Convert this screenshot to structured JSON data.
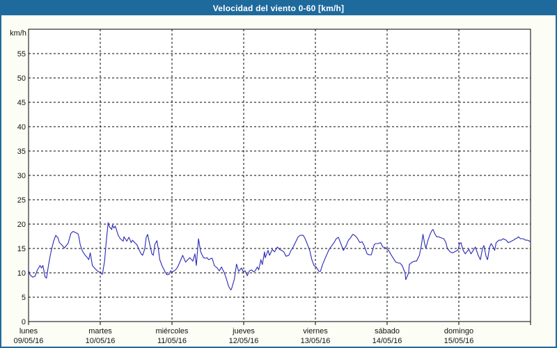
{
  "window": {
    "title": "Velocidad del viento 0-60 [km/h]"
  },
  "colors": {
    "frame_border": "#1e6a9d",
    "titlebar_bg": "#1e6a9d",
    "titlebar_text": "#ffffff",
    "page_bg": "#fcfef6",
    "plot_bg": "#ffffff",
    "axis": "#000000",
    "grid": "#000000",
    "line": "#2828b4",
    "label_text": "#111111"
  },
  "chart_data": {
    "type": "line",
    "title": "Velocidad del viento 0-60 [km/h]",
    "ylabel": "km/h",
    "xlabel": "",
    "ylim": [
      0,
      60
    ],
    "yticks": [
      0,
      5,
      10,
      15,
      20,
      25,
      30,
      35,
      40,
      45,
      50,
      55
    ],
    "grid": "dashed",
    "legend": "none",
    "x_axis": {
      "unit": "days",
      "xlim_days": [
        0,
        7
      ],
      "days": [
        {
          "name": "lunes",
          "date": "09/05/16"
        },
        {
          "name": "martes",
          "date": "10/05/16"
        },
        {
          "name": "miércoles",
          "date": "11/05/16"
        },
        {
          "name": "jueves",
          "date": "12/05/16"
        },
        {
          "name": "viernes",
          "date": "13/05/16"
        },
        {
          "name": "sábado",
          "date": "14/05/16"
        },
        {
          "name": "domingo",
          "date": "15/05/16"
        }
      ]
    },
    "series": [
      {
        "name": "Velocidad del viento",
        "units": "km/h",
        "color": "#2828b4",
        "points": [
          [
            0,
            10.5
          ],
          [
            0.02,
            9.6
          ],
          [
            0.06,
            9.1
          ],
          [
            0.09,
            9.3
          ],
          [
            0.12,
            10.5
          ],
          [
            0.16,
            11.5
          ],
          [
            0.18,
            11
          ],
          [
            0.2,
            11.5
          ],
          [
            0.23,
            9.2
          ],
          [
            0.25,
            8.9
          ],
          [
            0.28,
            11.7
          ],
          [
            0.31,
            14.1
          ],
          [
            0.35,
            16.5
          ],
          [
            0.38,
            17.7
          ],
          [
            0.41,
            17.2
          ],
          [
            0.43,
            16.2
          ],
          [
            0.46,
            15.8
          ],
          [
            0.5,
            15.1
          ],
          [
            0.52,
            15.5
          ],
          [
            0.55,
            16
          ],
          [
            0.59,
            18.1
          ],
          [
            0.62,
            18.5
          ],
          [
            0.65,
            18.3
          ],
          [
            0.69,
            18
          ],
          [
            0.7,
            17.5
          ],
          [
            0.72,
            15.8
          ],
          [
            0.75,
            14.5
          ],
          [
            0.79,
            13.6
          ],
          [
            0.82,
            13.1
          ],
          [
            0.84,
            12.7
          ],
          [
            0.86,
            14.1
          ],
          [
            0.89,
            11.5
          ],
          [
            0.93,
            10.8
          ],
          [
            0.96,
            10.4
          ],
          [
            1,
            10
          ],
          [
            1.03,
            9.7
          ],
          [
            1.06,
            12.4
          ],
          [
            1.08,
            15.8
          ],
          [
            1.11,
            20.3
          ],
          [
            1.13,
            19.4
          ],
          [
            1.16,
            18.9
          ],
          [
            1.17,
            19.8
          ],
          [
            1.19,
            19.2
          ],
          [
            1.21,
            19.6
          ],
          [
            1.25,
            17.7
          ],
          [
            1.28,
            17
          ],
          [
            1.32,
            16.5
          ],
          [
            1.33,
            17.4
          ],
          [
            1.37,
            16.5
          ],
          [
            1.4,
            17.3
          ],
          [
            1.43,
            16.2
          ],
          [
            1.45,
            16.7
          ],
          [
            1.48,
            16.2
          ],
          [
            1.51,
            15.8
          ],
          [
            1.54,
            14.8
          ],
          [
            1.57,
            13.9
          ],
          [
            1.59,
            13.6
          ],
          [
            1.62,
            14.9
          ],
          [
            1.64,
            17.2
          ],
          [
            1.66,
            17.9
          ],
          [
            1.69,
            15.8
          ],
          [
            1.72,
            13.9
          ],
          [
            1.74,
            13.6
          ],
          [
            1.76,
            15.8
          ],
          [
            1.79,
            16.6
          ],
          [
            1.81,
            14.9
          ],
          [
            1.83,
            12.7
          ],
          [
            1.86,
            11.5
          ],
          [
            1.9,
            10.3
          ],
          [
            1.93,
            9.6
          ],
          [
            1.96,
            9.7
          ],
          [
            1.98,
            10.4
          ],
          [
            2.01,
            10.2
          ],
          [
            2.05,
            10.6
          ],
          [
            2.08,
            11.2
          ],
          [
            2.11,
            12.2
          ],
          [
            2.15,
            13.6
          ],
          [
            2.17,
            12.9
          ],
          [
            2.19,
            12.2
          ],
          [
            2.22,
            12.7
          ],
          [
            2.25,
            13.1
          ],
          [
            2.29,
            12.4
          ],
          [
            2.32,
            13.9
          ],
          [
            2.34,
            11.5
          ],
          [
            2.37,
            17
          ],
          [
            2.4,
            14.3
          ],
          [
            2.44,
            13.1
          ],
          [
            2.47,
            13
          ],
          [
            2.49,
            13.1
          ],
          [
            2.51,
            12.7
          ],
          [
            2.54,
            12.9
          ],
          [
            2.56,
            13
          ],
          [
            2.59,
            11.5
          ],
          [
            2.63,
            11
          ],
          [
            2.66,
            10.4
          ],
          [
            2.69,
            11.2
          ],
          [
            2.73,
            10
          ],
          [
            2.76,
            8.7
          ],
          [
            2.79,
            7.2
          ],
          [
            2.82,
            6.5
          ],
          [
            2.83,
            6.7
          ],
          [
            2.87,
            8.7
          ],
          [
            2.9,
            11.8
          ],
          [
            2.93,
            10.3
          ],
          [
            2.97,
            11
          ],
          [
            2.99,
            10.3
          ],
          [
            3.02,
            10.4
          ],
          [
            3.05,
            9.4
          ],
          [
            3.08,
            10.4
          ],
          [
            3.11,
            10.6
          ],
          [
            3.14,
            10.2
          ],
          [
            3.16,
            10.4
          ],
          [
            3.19,
            11.2
          ],
          [
            3.21,
            10.6
          ],
          [
            3.24,
            12.7
          ],
          [
            3.26,
            11.7
          ],
          [
            3.29,
            14.3
          ],
          [
            3.3,
            13.1
          ],
          [
            3.34,
            14.6
          ],
          [
            3.36,
            13.6
          ],
          [
            3.4,
            14.8
          ],
          [
            3.43,
            14.3
          ],
          [
            3.45,
            14.8
          ],
          [
            3.47,
            15.3
          ],
          [
            3.5,
            14.8
          ],
          [
            3.53,
            14.6
          ],
          [
            3.56,
            14.3
          ],
          [
            3.59,
            13.4
          ],
          [
            3.63,
            13.6
          ],
          [
            3.66,
            14.6
          ],
          [
            3.69,
            15.3
          ],
          [
            3.73,
            16.5
          ],
          [
            3.76,
            17.4
          ],
          [
            3.79,
            17.7
          ],
          [
            3.83,
            17.7
          ],
          [
            3.85,
            17.2
          ],
          [
            3.88,
            16.2
          ],
          [
            3.92,
            14.6
          ],
          [
            3.95,
            12.7
          ],
          [
            3.98,
            11.5
          ],
          [
            4.01,
            11.2
          ],
          [
            4.05,
            10.3
          ],
          [
            4.07,
            10.3
          ],
          [
            4.1,
            11.7
          ],
          [
            4.14,
            13.1
          ],
          [
            4.17,
            14.1
          ],
          [
            4.19,
            14.8
          ],
          [
            4.23,
            15.6
          ],
          [
            4.26,
            16.2
          ],
          [
            4.29,
            17
          ],
          [
            4.32,
            17.3
          ],
          [
            4.36,
            15.8
          ],
          [
            4.39,
            14.6
          ],
          [
            4.43,
            15.6
          ],
          [
            4.46,
            16.7
          ],
          [
            4.49,
            17.2
          ],
          [
            4.52,
            17.9
          ],
          [
            4.55,
            17.7
          ],
          [
            4.58,
            17.2
          ],
          [
            4.62,
            16.2
          ],
          [
            4.65,
            16.4
          ],
          [
            4.68,
            15.6
          ],
          [
            4.72,
            13.9
          ],
          [
            4.75,
            13.7
          ],
          [
            4.78,
            13.7
          ],
          [
            4.82,
            15.8
          ],
          [
            4.84,
            16
          ],
          [
            4.87,
            16
          ],
          [
            4.91,
            16.2
          ],
          [
            4.94,
            15.3
          ],
          [
            4.97,
            15.2
          ],
          [
            5.02,
            14.6
          ],
          [
            5.06,
            13.6
          ],
          [
            5.09,
            12.9
          ],
          [
            5.12,
            12.2
          ],
          [
            5.16,
            12
          ],
          [
            5.18,
            12
          ],
          [
            5.21,
            11.5
          ],
          [
            5.25,
            10
          ],
          [
            5.26,
            8.6
          ],
          [
            5.3,
            10
          ],
          [
            5.31,
            11.7
          ],
          [
            5.35,
            12.2
          ],
          [
            5.38,
            12.4
          ],
          [
            5.41,
            12.4
          ],
          [
            5.45,
            13.6
          ],
          [
            5.48,
            15.8
          ],
          [
            5.5,
            17.9
          ],
          [
            5.52,
            16.2
          ],
          [
            5.54,
            15
          ],
          [
            5.57,
            16.7
          ],
          [
            5.6,
            17.9
          ],
          [
            5.62,
            18.6
          ],
          [
            5.64,
            18.9
          ],
          [
            5.67,
            17.9
          ],
          [
            5.69,
            17.4
          ],
          [
            5.72,
            17.4
          ],
          [
            5.75,
            17.2
          ],
          [
            5.79,
            17
          ],
          [
            5.82,
            16.2
          ],
          [
            5.84,
            15
          ],
          [
            5.88,
            14.3
          ],
          [
            5.91,
            14.1
          ],
          [
            5.94,
            14.3
          ],
          [
            5.98,
            14.6
          ],
          [
            5.99,
            14.8
          ],
          [
            6.01,
            16
          ],
          [
            6.03,
            16.2
          ],
          [
            6.06,
            14.6
          ],
          [
            6.09,
            13.9
          ],
          [
            6.11,
            14.3
          ],
          [
            6.14,
            14.8
          ],
          [
            6.17,
            13.9
          ],
          [
            6.2,
            14.6
          ],
          [
            6.23,
            15.3
          ],
          [
            6.27,
            13.6
          ],
          [
            6.3,
            12.7
          ],
          [
            6.33,
            15
          ],
          [
            6.35,
            15.6
          ],
          [
            6.38,
            13.4
          ],
          [
            6.4,
            12.7
          ],
          [
            6.43,
            15.3
          ],
          [
            6.45,
            16
          ],
          [
            6.48,
            15.3
          ],
          [
            6.5,
            14.6
          ],
          [
            6.52,
            16.2
          ],
          [
            6.56,
            16.7
          ],
          [
            6.59,
            16.7
          ],
          [
            6.62,
            17
          ],
          [
            6.66,
            16.7
          ],
          [
            6.69,
            16.2
          ],
          [
            6.72,
            16.4
          ],
          [
            6.76,
            16.7
          ],
          [
            6.79,
            17
          ],
          [
            6.82,
            17.2
          ],
          [
            6.83,
            17.4
          ],
          [
            6.86,
            17
          ],
          [
            6.9,
            17
          ],
          [
            6.93,
            16.7
          ],
          [
            6.96,
            16.7
          ],
          [
            7,
            16.4
          ]
        ]
      }
    ]
  }
}
